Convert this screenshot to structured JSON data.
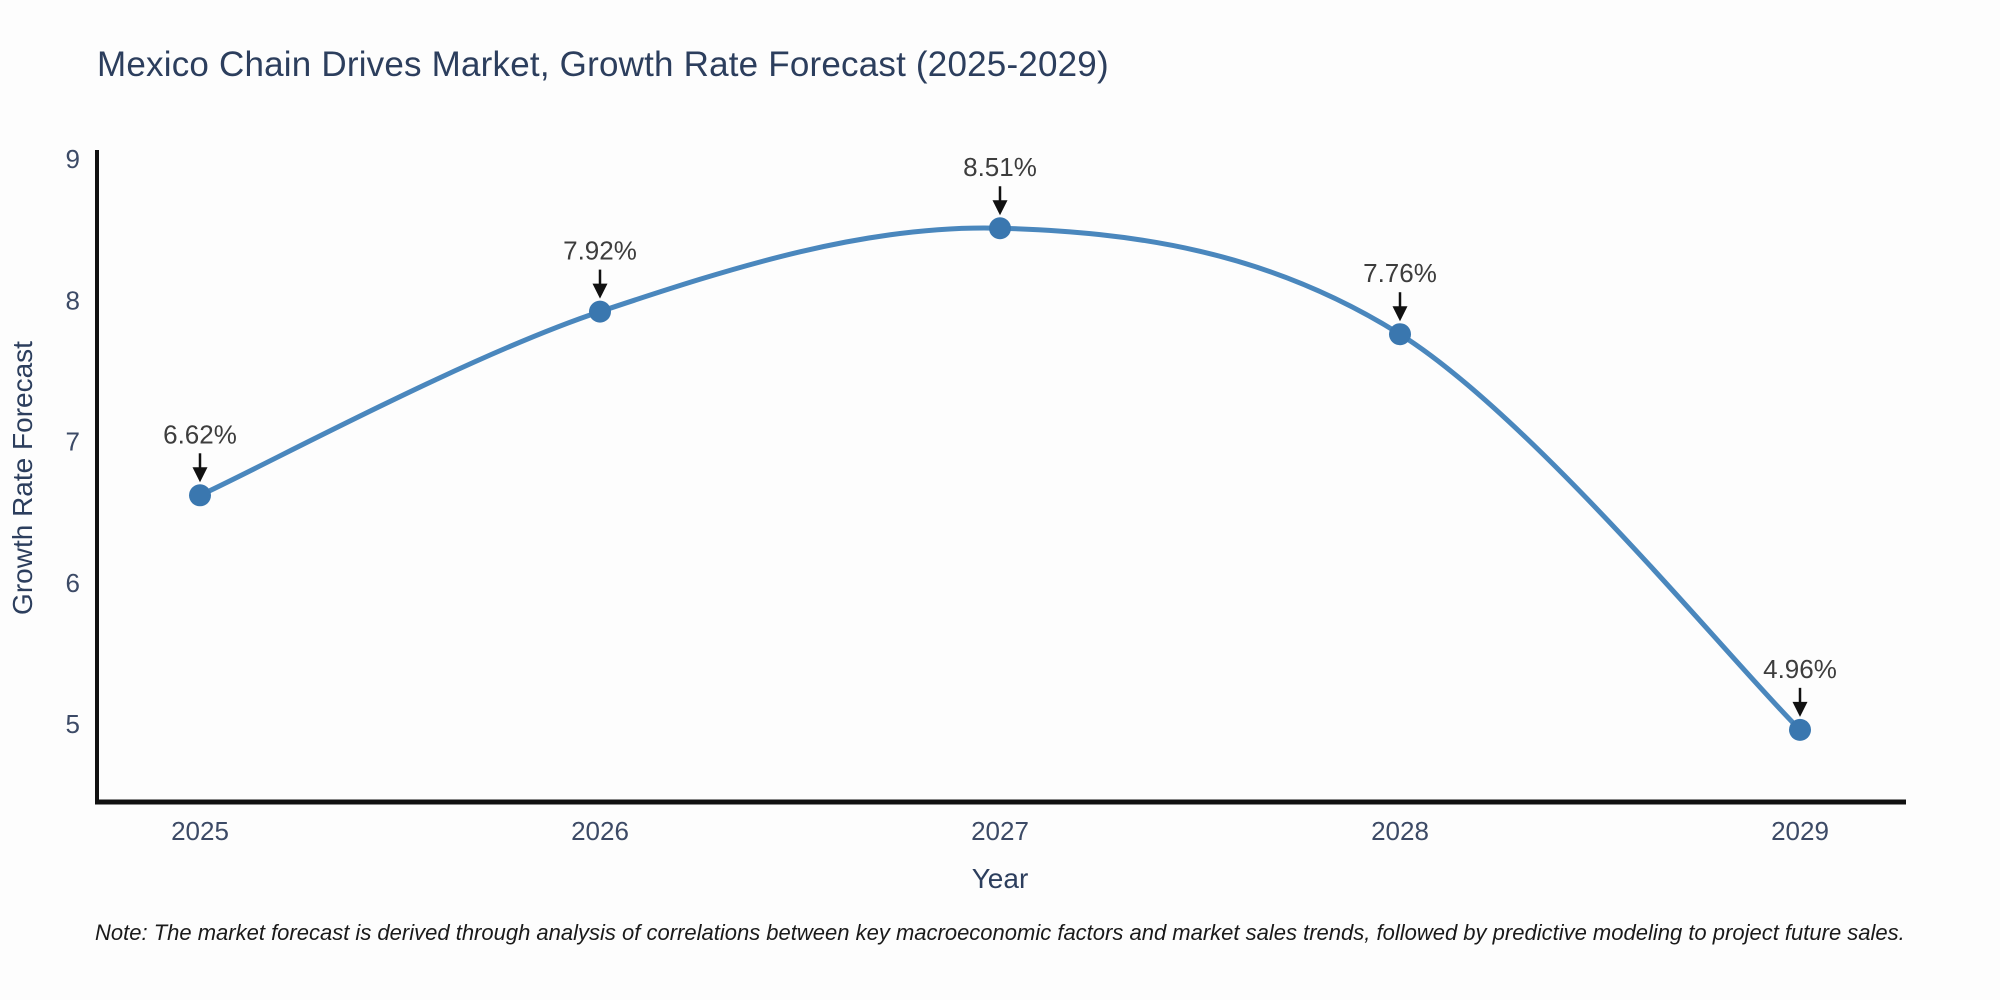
{
  "page": {
    "background_color": "#fdfdfd",
    "note": "Note: The market forecast is derived through analysis of correlations between key macroeconomic factors and market sales trends, followed by predictive modeling to project future sales."
  },
  "chart_data": {
    "type": "line",
    "title": "Mexico Chain Drives Market, Growth Rate Forecast (2025-2029)",
    "xlabel": "Year",
    "ylabel": "Growth Rate Forecast",
    "x": [
      2025,
      2026,
      2027,
      2028,
      2029
    ],
    "x_tick_labels": [
      "2025",
      "2026",
      "2027",
      "2028",
      "2029"
    ],
    "values": [
      6.62,
      7.92,
      8.51,
      7.76,
      4.96
    ],
    "point_labels": [
      "6.62%",
      "7.92%",
      "8.51%",
      "7.76%",
      "4.96%"
    ],
    "yticks": [
      5,
      6,
      7,
      8,
      9
    ],
    "ylim": [
      4.45,
      9.0
    ],
    "xlim": [
      2024.74,
      2029.27
    ],
    "grid": false,
    "legend": false,
    "curve": "spline",
    "line_color": "#4a87bd",
    "marker_color": "#3a77af",
    "axis_color": "#111111",
    "arrow_color": "#111111",
    "title_color": "#2c3e5d",
    "tick_color": "#3c4a66",
    "annotation_color": "#3d3d3d"
  }
}
